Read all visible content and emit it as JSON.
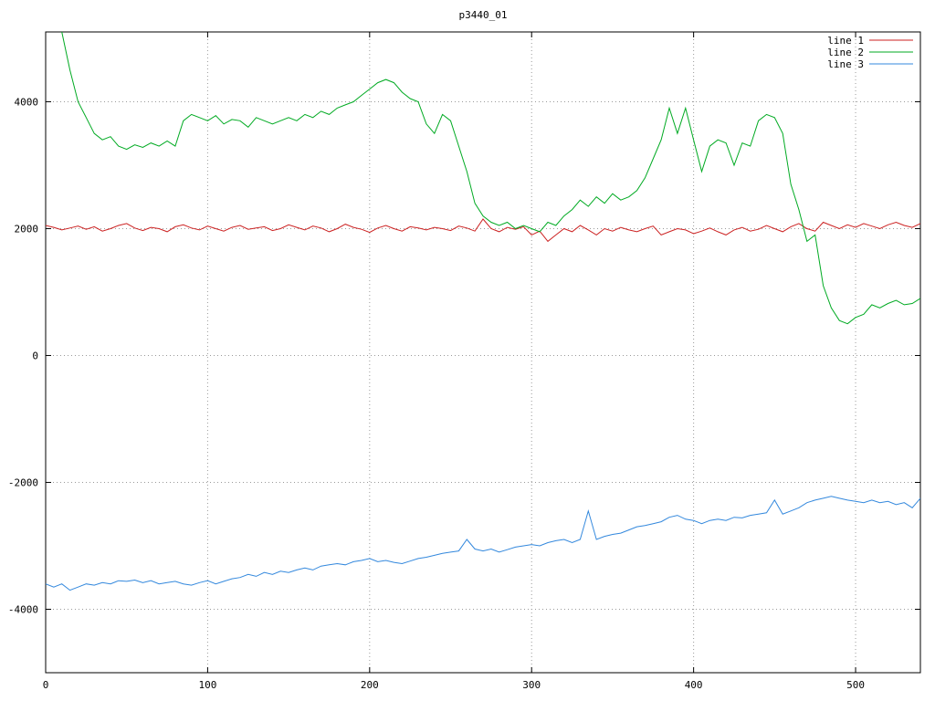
{
  "chart_data": {
    "type": "line",
    "title": "p3440_01",
    "xlabel": "",
    "ylabel": "",
    "xlim": [
      0,
      540
    ],
    "ylim": [
      -5000,
      5100
    ],
    "xticks": [
      0,
      100,
      200,
      300,
      400,
      500
    ],
    "yticks": [
      -4000,
      -2000,
      0,
      2000,
      4000
    ],
    "grid": true,
    "grid_style": "dotted",
    "legend_position": "top-right",
    "background_color": "#ffffff",
    "border_color": "#000000",
    "grid_color": "#9a9a9a",
    "x": [
      0,
      5,
      10,
      15,
      20,
      25,
      30,
      35,
      40,
      45,
      50,
      55,
      60,
      65,
      70,
      75,
      80,
      85,
      90,
      95,
      100,
      105,
      110,
      115,
      120,
      125,
      130,
      135,
      140,
      145,
      150,
      155,
      160,
      165,
      170,
      175,
      180,
      185,
      190,
      195,
      200,
      205,
      210,
      215,
      220,
      225,
      230,
      235,
      240,
      245,
      250,
      255,
      260,
      265,
      270,
      275,
      280,
      285,
      290,
      295,
      300,
      305,
      310,
      315,
      320,
      325,
      330,
      335,
      340,
      345,
      350,
      355,
      360,
      365,
      370,
      375,
      380,
      385,
      390,
      395,
      400,
      405,
      410,
      415,
      420,
      425,
      430,
      435,
      440,
      445,
      450,
      455,
      460,
      465,
      470,
      475,
      480,
      485,
      490,
      495,
      500,
      505,
      510,
      515,
      520,
      525,
      530,
      535,
      540
    ],
    "series": [
      {
        "name": "line 1",
        "color": "#cc2222",
        "values": [
          2050,
          2020,
          1980,
          2010,
          2040,
          1990,
          2030,
          1960,
          2000,
          2050,
          2080,
          2010,
          1970,
          2020,
          2000,
          1950,
          2030,
          2060,
          2010,
          1980,
          2040,
          2000,
          1960,
          2020,
          2050,
          1990,
          2010,
          2030,
          1970,
          2000,
          2060,
          2020,
          1980,
          2040,
          2010,
          1950,
          2000,
          2070,
          2020,
          1990,
          1940,
          2010,
          2050,
          2000,
          1960,
          2030,
          2010,
          1980,
          2020,
          2000,
          1970,
          2040,
          2010,
          1960,
          2150,
          2000,
          1950,
          2020,
          1990,
          2030,
          1900,
          1960,
          1800,
          1900,
          2000,
          1950,
          2050,
          1980,
          1900,
          2000,
          1960,
          2020,
          1980,
          1950,
          2000,
          2040,
          1900,
          1950,
          2000,
          1980,
          1920,
          1960,
          2010,
          1950,
          1900,
          1980,
          2020,
          1960,
          1990,
          2050,
          2000,
          1950,
          2030,
          2080,
          2000,
          1960,
          2100,
          2050,
          2000,
          2060,
          2020,
          2080,
          2040,
          2000,
          2060,
          2100,
          2050,
          2020,
          2080
        ]
      },
      {
        "name": "line 2",
        "color": "#00aa22",
        "values": [
          null,
          null,
          5100,
          4500,
          4000,
          3750,
          3500,
          3400,
          3450,
          3300,
          3250,
          3320,
          3280,
          3350,
          3300,
          3380,
          3300,
          3700,
          3800,
          3750,
          3700,
          3780,
          3650,
          3720,
          3700,
          3600,
          3750,
          3700,
          3650,
          3700,
          3750,
          3700,
          3800,
          3750,
          3850,
          3800,
          3900,
          3950,
          4000,
          4100,
          4200,
          4300,
          4350,
          4300,
          4150,
          4050,
          4000,
          3650,
          3500,
          3800,
          3700,
          3300,
          2900,
          2400,
          2200,
          2100,
          2050,
          2100,
          2000,
          2050,
          2000,
          1950,
          2100,
          2050,
          2200,
          2300,
          2450,
          2350,
          2500,
          2400,
          2550,
          2450,
          2500,
          2600,
          2800,
          3100,
          3400,
          3900,
          3500,
          3900,
          3400,
          2900,
          3300,
          3400,
          3350,
          3000,
          3350,
          3300,
          3700,
          3800,
          3750,
          3500,
          2700,
          2300,
          1800,
          1900,
          1100,
          750,
          550,
          500,
          600,
          650,
          800,
          750,
          820,
          870,
          800,
          820,
          900
        ]
      },
      {
        "name": "line 3",
        "color": "#3388dd",
        "values": [
          -3600,
          -3650,
          -3600,
          -3700,
          -3650,
          -3600,
          -3620,
          -3580,
          -3600,
          -3550,
          -3560,
          -3540,
          -3580,
          -3550,
          -3600,
          -3580,
          -3560,
          -3600,
          -3620,
          -3580,
          -3550,
          -3600,
          -3560,
          -3520,
          -3500,
          -3450,
          -3480,
          -3420,
          -3450,
          -3400,
          -3420,
          -3380,
          -3350,
          -3380,
          -3320,
          -3300,
          -3280,
          -3300,
          -3250,
          -3230,
          -3200,
          -3250,
          -3230,
          -3260,
          -3280,
          -3240,
          -3200,
          -3180,
          -3150,
          -3120,
          -3100,
          -3080,
          -2900,
          -3050,
          -3080,
          -3050,
          -3100,
          -3060,
          -3020,
          -3000,
          -2980,
          -3000,
          -2950,
          -2920,
          -2900,
          -2950,
          -2900,
          -2450,
          -2900,
          -2850,
          -2820,
          -2800,
          -2750,
          -2700,
          -2680,
          -2650,
          -2620,
          -2550,
          -2520,
          -2580,
          -2600,
          -2650,
          -2600,
          -2580,
          -2600,
          -2550,
          -2560,
          -2520,
          -2500,
          -2480,
          -2280,
          -2500,
          -2450,
          -2400,
          -2320,
          -2280,
          -2250,
          -2220,
          -2250,
          -2280,
          -2300,
          -2320,
          -2280,
          -2320,
          -2300,
          -2350,
          -2320,
          -2400,
          -2250
        ]
      }
    ]
  }
}
